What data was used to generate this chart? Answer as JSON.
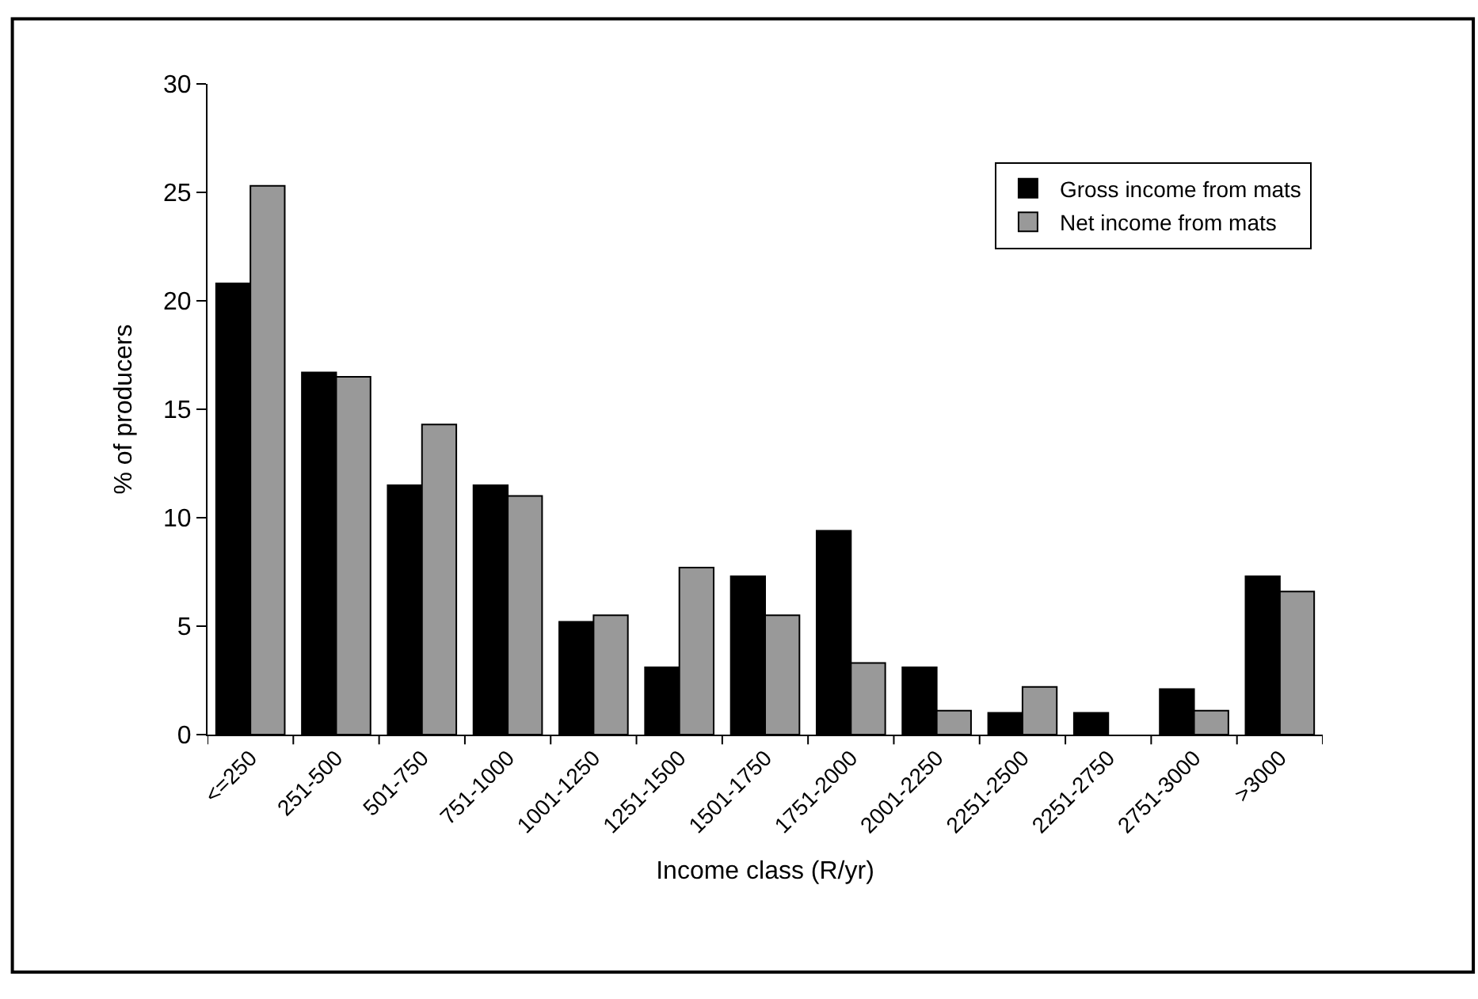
{
  "chart_data": {
    "type": "bar",
    "xlabel": "Income class (R/yr)",
    "ylabel": "% of producers",
    "categories": [
      "<=250",
      "251-500",
      "501-750",
      "751-1000",
      "1001-1250",
      "1251-1500",
      "1501-1750",
      "1751-2000",
      "2001-2250",
      "2251-2500",
      "2251-2750",
      "2751-3000",
      ">3000"
    ],
    "series": [
      {
        "name": "Gross income from mats",
        "color": "#000000",
        "values": [
          20.8,
          16.7,
          11.5,
          11.5,
          5.2,
          3.1,
          7.3,
          9.4,
          3.1,
          1.0,
          1.0,
          2.1,
          7.3
        ]
      },
      {
        "name": "Net income from mats",
        "color": "#999999",
        "values": [
          25.3,
          16.5,
          14.3,
          11.0,
          5.5,
          7.7,
          5.5,
          3.3,
          1.1,
          2.2,
          null,
          1.1,
          6.6
        ]
      }
    ],
    "ylim": [
      0,
      30
    ],
    "yticks": [
      0,
      5,
      10,
      15,
      20,
      25,
      30
    ],
    "legend": "top right"
  }
}
